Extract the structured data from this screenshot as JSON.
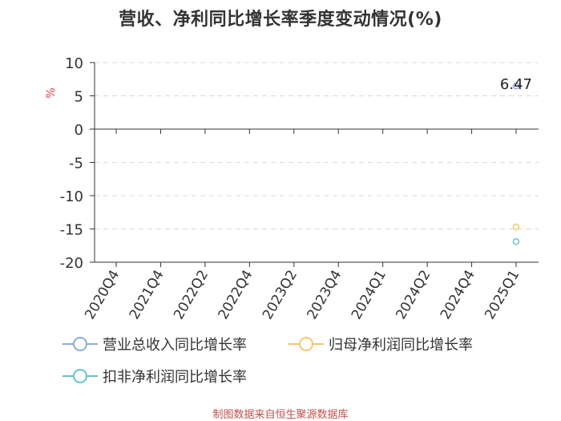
{
  "title": "营收、净利同比增长率季度变动情况(%)",
  "source": "制图数据来自恒生聚源数据库",
  "chart_data": {
    "type": "line",
    "ylabel": "%",
    "ylim": [
      -20,
      10
    ],
    "yticks": [
      10,
      5,
      0,
      -5,
      -10,
      -15,
      -20
    ],
    "grid": true,
    "legend_position": "bottom",
    "categories": [
      "2020Q4",
      "2021Q4",
      "2022Q2",
      "2022Q4",
      "2023Q2",
      "2023Q4",
      "2024Q1",
      "2024Q2",
      "2024Q4",
      "2025Q1"
    ],
    "series": [
      {
        "name": "营业总收入同比增长率",
        "color": "#8faadc",
        "values": [
          null,
          null,
          null,
          null,
          null,
          null,
          null,
          null,
          null,
          6.47
        ]
      },
      {
        "name": "归母净利润同比增长率",
        "color": "#f6c86a",
        "values": [
          null,
          null,
          null,
          null,
          null,
          null,
          null,
          null,
          null,
          -14.7
        ]
      },
      {
        "name": "扣非净利润同比增长率",
        "color": "#5fc8c9",
        "values": [
          null,
          null,
          null,
          null,
          null,
          null,
          null,
          null,
          null,
          -16.9
        ]
      }
    ],
    "annotations": [
      {
        "category": "2025Q1",
        "text": "6.47"
      }
    ]
  }
}
